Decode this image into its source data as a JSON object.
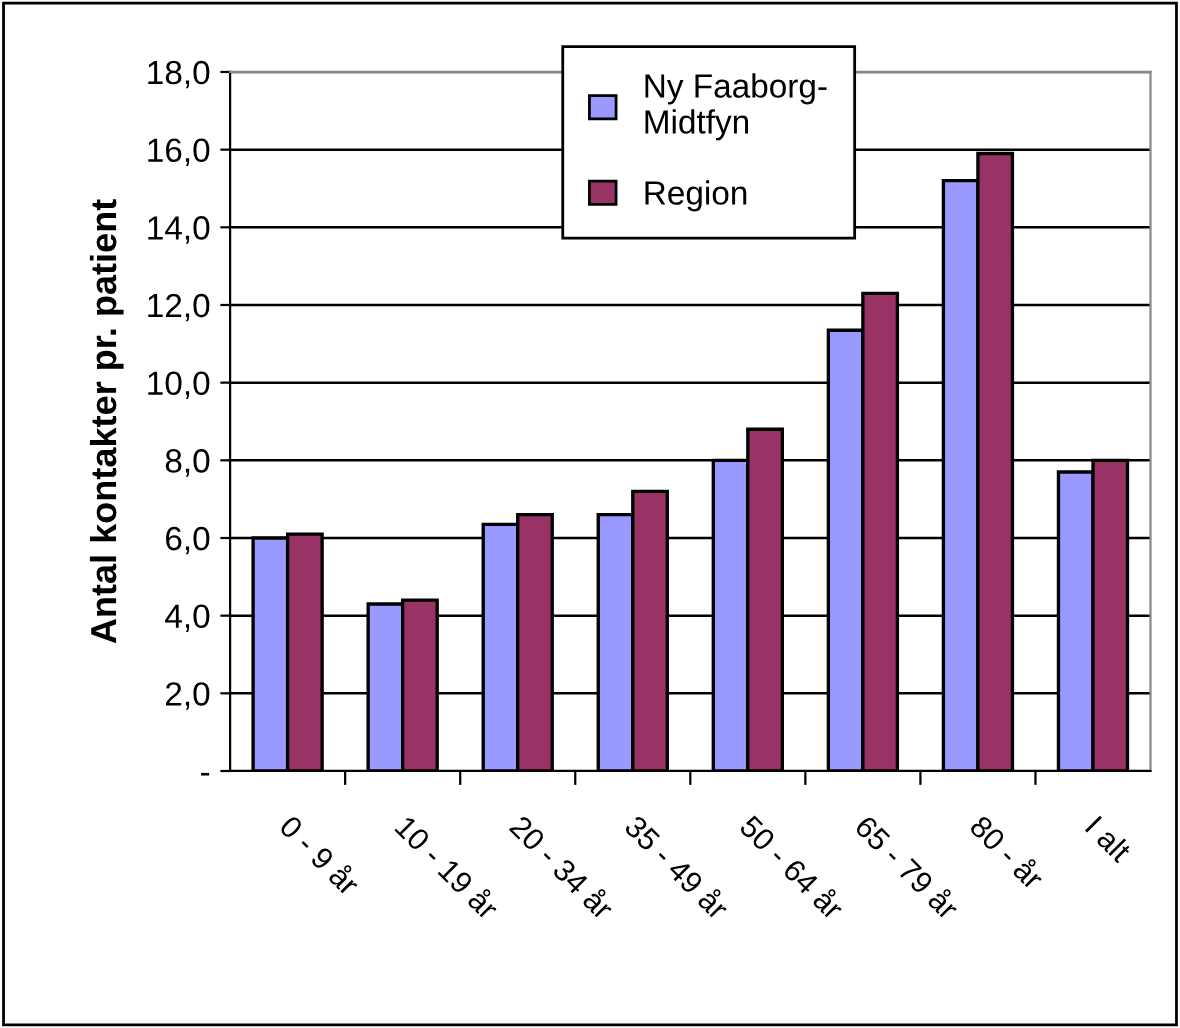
{
  "chart_data": {
    "type": "bar",
    "ylabel": "Antal kontakter pr. patient",
    "categories": [
      "0 - 9 år",
      "10 - 19 år",
      "20 - 34 år",
      "35 - 49 år",
      "50 - 64 år",
      "65 - 79 år",
      "80 - år",
      "I alt"
    ],
    "series": [
      {
        "name": "Ny Faaborg-\nMidtfyn",
        "color": "#9999ff",
        "values": [
          6.0,
          4.3,
          6.35,
          6.6,
          8.0,
          11.35,
          15.2,
          7.7
        ]
      },
      {
        "name": "Region",
        "color": "#993366",
        "values": [
          6.1,
          4.4,
          6.6,
          7.2,
          8.8,
          12.3,
          15.9,
          8.0
        ]
      }
    ],
    "ylim": [
      0,
      18
    ],
    "yticks": [
      {
        "value": 0,
        "label": "-"
      },
      {
        "value": 2,
        "label": "2,0"
      },
      {
        "value": 4,
        "label": "4,0"
      },
      {
        "value": 6,
        "label": "6,0"
      },
      {
        "value": 8,
        "label": "8,0"
      },
      {
        "value": 10,
        "label": "10,0"
      },
      {
        "value": 12,
        "label": "12,0"
      },
      {
        "value": 14,
        "label": "14,0"
      },
      {
        "value": 16,
        "label": "16,0"
      },
      {
        "value": 18,
        "label": "18,0"
      }
    ],
    "grid": "y",
    "legend": "top"
  }
}
